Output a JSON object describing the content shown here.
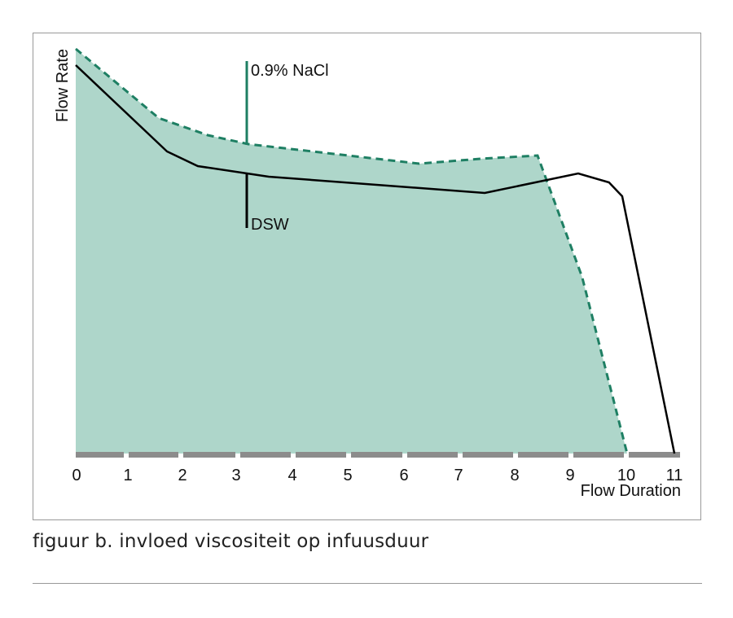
{
  "chart_data": {
    "type": "area",
    "xlabel": "Flow Duration",
    "ylabel": "Flow Rate",
    "x_ticks": [
      "0",
      "1",
      "2",
      "3",
      "4",
      "5",
      "6",
      "7",
      "8",
      "9",
      "10",
      "11"
    ],
    "xlim": [
      0,
      11
    ],
    "ylim": [
      0,
      100
    ],
    "series": [
      {
        "name": "0.9% NaCl",
        "style": "dashed-filled",
        "color": "#1e7f63",
        "fill": "#aed6ca",
        "x": [
          0,
          1.51,
          2.4,
          3.14,
          6.25,
          7.36,
          8.4,
          9.21,
          10.03
        ],
        "y": [
          99.4,
          82.4,
          78.2,
          76,
          71.2,
          72.4,
          73.2,
          43.4,
          0
        ]
      },
      {
        "name": "DSW",
        "style": "solid",
        "color": "#000000",
        "x": [
          0,
          1.66,
          2.22,
          3.51,
          7.44,
          9.14,
          9.7,
          9.94,
          10.89
        ],
        "y": [
          95.4,
          74.2,
          70.6,
          68,
          64,
          68.8,
          66.6,
          63.2,
          0
        ]
      }
    ],
    "annotations": [
      {
        "text": "0.9% NaCl",
        "series": 0
      },
      {
        "text": "DSW",
        "series": 1
      }
    ]
  },
  "caption": "figuur b.  invloed viscositeit op infuusduur"
}
